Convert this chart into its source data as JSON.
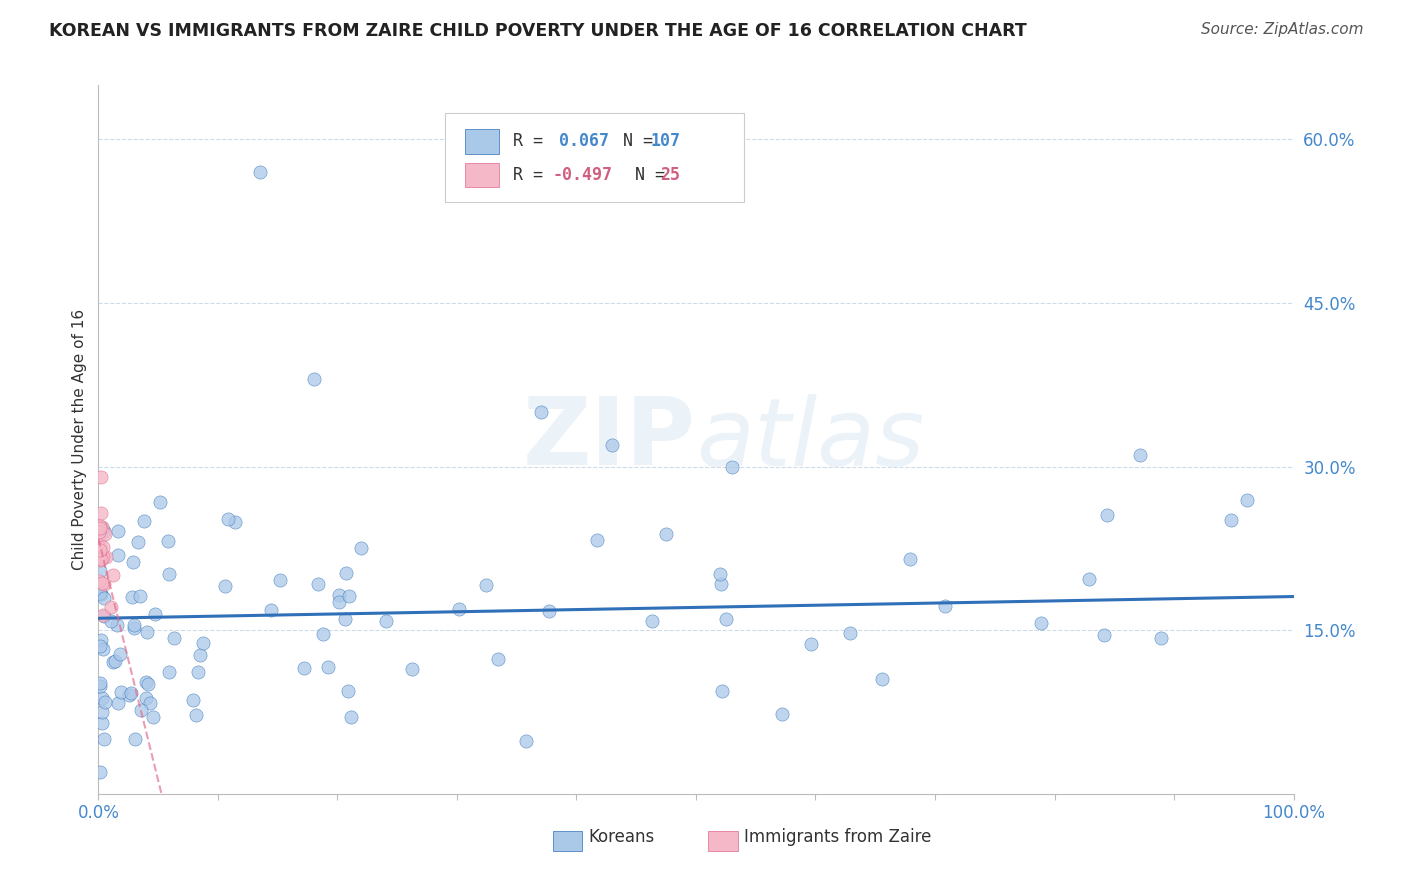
{
  "title": "KOREAN VS IMMIGRANTS FROM ZAIRE CHILD POVERTY UNDER THE AGE OF 16 CORRELATION CHART",
  "source": "Source: ZipAtlas.com",
  "ylabel": "Child Poverty Under the Age of 16",
  "xlim": [
    0.0,
    1.0
  ],
  "ylim": [
    0.0,
    0.65
  ],
  "ytick_positions": [
    0.15,
    0.3,
    0.45,
    0.6
  ],
  "ytick_labels": [
    "15.0%",
    "30.0%",
    "45.0%",
    "60.0%"
  ],
  "korean_R": 0.067,
  "korean_N": 107,
  "zaire_R": -0.497,
  "zaire_N": 25,
  "korean_color": "#aac8e8",
  "zaire_color": "#f4b8c8",
  "korean_line_color": "#3070b8",
  "zaire_line_color": "#e06888",
  "background_color": "#ffffff",
  "grid_color": "#c8d8e8",
  "title_color": "#222222",
  "source_color": "#555555",
  "tick_color": "#4488cc",
  "legend_text_color_r": "#4488cc",
  "legend_text_color_pink": "#d06080"
}
